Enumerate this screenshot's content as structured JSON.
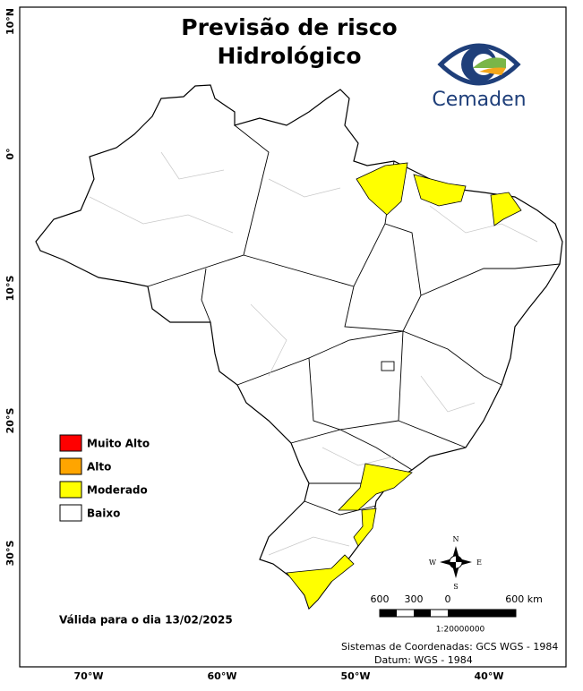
{
  "title": [
    "Previsão de risco",
    "Hidrológico"
  ],
  "logo": "Cemaden",
  "lat_labels": [
    "10°N",
    "0°",
    "10°S",
    "20°S",
    "30°S"
  ],
  "lon_labels": [
    "70°W",
    "60°W",
    "50°W",
    "40°W"
  ],
  "legend": [
    {
      "label": "Muito Alto",
      "color": "#ff0000"
    },
    {
      "label": "Alto",
      "color": "#ffa500"
    },
    {
      "label": "Moderado",
      "color": "#ffff00"
    },
    {
      "label": "Baixo",
      "color": "#ffffff"
    }
  ],
  "valid": "Válida para o dia 13/02/2025",
  "scale": {
    "labels": [
      "600",
      "300",
      "0",
      "600 km"
    ],
    "ratio": "1:20000000"
  },
  "compass": [
    "N",
    "E",
    "S",
    "W"
  ],
  "footer": [
    "Sistemas de Coordenadas: GCS WGS - 1984",
    "Datum: WGS - 1984"
  ]
}
